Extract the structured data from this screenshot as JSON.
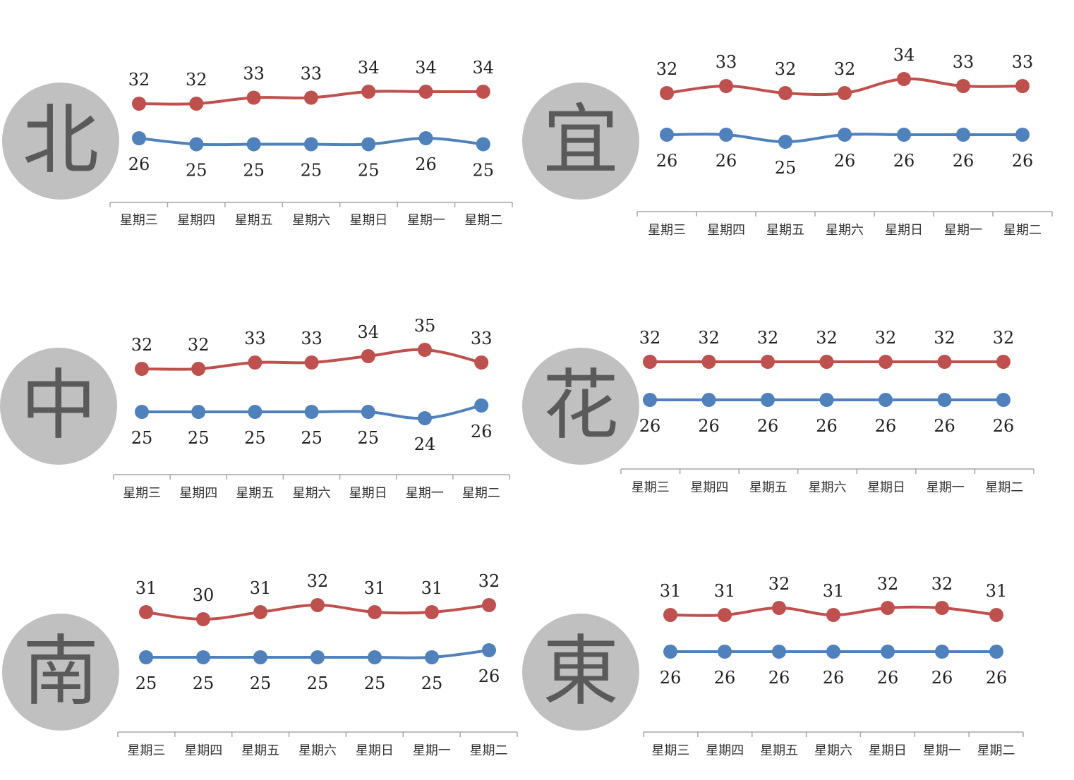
{
  "colors": {
    "high": "#c0504d",
    "low": "#4f81bd",
    "badge": "#c0c0c0",
    "axis": "#a6a6a6"
  },
  "chart_data": [
    {
      "type": "line",
      "region": "北",
      "categories": [
        "星期三",
        "星期四",
        "星期五",
        "星期六",
        "星期日",
        "星期一",
        "星期二"
      ],
      "series": [
        {
          "values": [
            32,
            32,
            33,
            33,
            34,
            34,
            34
          ]
        },
        {
          "values": [
            26,
            25,
            25,
            25,
            25,
            26,
            25
          ]
        }
      ]
    },
    {
      "type": "line",
      "region": "宜",
      "categories": [
        "星期三",
        "星期四",
        "星期五",
        "星期六",
        "星期日",
        "星期一",
        "星期二"
      ],
      "series": [
        {
          "values": [
            32,
            33,
            32,
            32,
            34,
            33,
            33
          ]
        },
        {
          "values": [
            26,
            26,
            25,
            26,
            26,
            26,
            26
          ]
        }
      ]
    },
    {
      "type": "line",
      "region": "中",
      "categories": [
        "星期三",
        "星期四",
        "星期五",
        "星期六",
        "星期日",
        "星期一",
        "星期二"
      ],
      "series": [
        {
          "values": [
            32,
            32,
            33,
            33,
            34,
            35,
            33
          ]
        },
        {
          "values": [
            25,
            25,
            25,
            25,
            25,
            24,
            26
          ]
        }
      ]
    },
    {
      "type": "line",
      "region": "花",
      "categories": [
        "星期三",
        "星期四",
        "星期五",
        "星期六",
        "星期日",
        "星期一",
        "星期二"
      ],
      "series": [
        {
          "values": [
            32,
            32,
            32,
            32,
            32,
            32,
            32
          ]
        },
        {
          "values": [
            26,
            26,
            26,
            26,
            26,
            26,
            26
          ]
        }
      ]
    },
    {
      "type": "line",
      "region": "南",
      "categories": [
        "星期三",
        "星期四",
        "星期五",
        "星期六",
        "星期日",
        "星期一",
        "星期二"
      ],
      "series": [
        {
          "values": [
            31,
            30,
            31,
            32,
            31,
            31,
            32
          ]
        },
        {
          "values": [
            25,
            25,
            25,
            25,
            25,
            25,
            26
          ]
        }
      ]
    },
    {
      "type": "line",
      "region": "東",
      "categories": [
        "星期三",
        "星期四",
        "星期五",
        "星期六",
        "星期日",
        "星期一",
        "星期二"
      ],
      "series": [
        {
          "values": [
            31,
            31,
            32,
            31,
            32,
            32,
            31
          ]
        },
        {
          "values": [
            26,
            26,
            26,
            26,
            26,
            26,
            26
          ]
        }
      ]
    }
  ]
}
